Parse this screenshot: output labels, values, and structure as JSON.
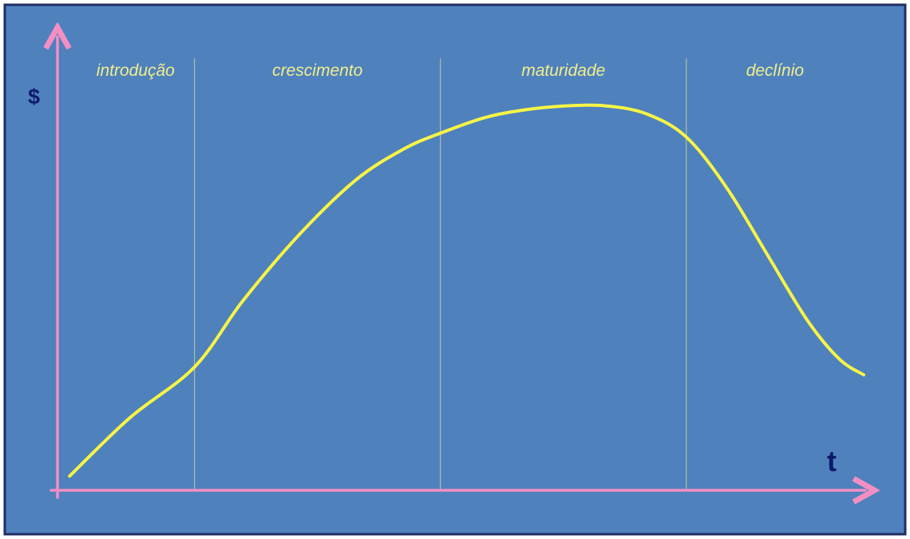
{
  "colors": {
    "panel_fill": "#4f81bd",
    "panel_border": "#1f2f63",
    "axis": "#f48fc4",
    "curve": "#f7f545",
    "divider": "#d9d79a",
    "stage_label": "#f2ef8a",
    "axis_letter": "#0d1a6b"
  },
  "chart_data": {
    "type": "line",
    "title": "",
    "ylabel": "$",
    "xlabel": "t",
    "xlim": [
      0,
      100
    ],
    "ylim": [
      0,
      100
    ],
    "grid": false,
    "stages": [
      {
        "label": "introdução",
        "start": 0,
        "end": 17
      },
      {
        "label": "crescimento",
        "start": 17,
        "end": 47.5
      },
      {
        "label": "maturidade",
        "start": 47.5,
        "end": 78
      },
      {
        "label": "declínio",
        "start": 78,
        "end": 100
      }
    ],
    "series": [
      {
        "x": [
          1.5,
          9,
          17,
          23,
          30,
          37,
          43,
          47.5,
          53,
          58,
          63,
          68,
          73,
          78,
          83,
          88,
          93,
          97,
          100
        ],
        "values": [
          2,
          17,
          30,
          47,
          64,
          78,
          86,
          90,
          94,
          96,
          97,
          97,
          95,
          89,
          76,
          59,
          42,
          32,
          28
        ]
      }
    ]
  }
}
